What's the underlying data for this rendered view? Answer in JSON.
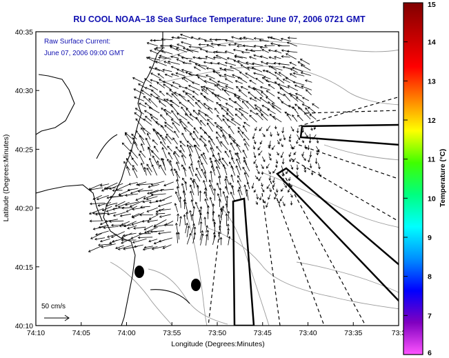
{
  "title": "RU COOL  NOAA–18  Sea Surface Temperature:  June 07, 2006 0721 GMT",
  "annotation": {
    "line1": "Raw Surface Current:",
    "line2": "June 07, 2006 09:00 GMT"
  },
  "scale_label": "50 cm/s",
  "chart_data": {
    "type": "vector-field",
    "title": "RU COOL  NOAA–18  Sea Surface Temperature:  June 07, 2006 0721 GMT",
    "xlabel": "Longitude (Degrees:Minutes)",
    "ylabel": "Latitude (Degrees:Minutes)",
    "x_ticks": [
      "74:10",
      "74:05",
      "74:00",
      "73:55",
      "73:50",
      "73:45",
      "73:40",
      "73:35",
      "73:3"
    ],
    "y_ticks": [
      "40:35",
      "40:30",
      "40:25",
      "40:20",
      "40:15",
      "40:10"
    ],
    "xlim_minutes_west": [
      70,
      30
    ],
    "ylim_minutes_north": [
      10,
      35
    ],
    "colorbar": {
      "label": "Temperature (°C)",
      "ticks": [
        "15",
        "14",
        "13",
        "12",
        "11",
        "10",
        "9",
        "8",
        "7",
        "6"
      ],
      "range": [
        6,
        15
      ],
      "colors": [
        "#ff55ff",
        "#8000c0",
        "#0000ff",
        "#0090ff",
        "#00ffff",
        "#00ff80",
        "#40ff00",
        "#ffff00",
        "#ff8000",
        "#ff0000",
        "#c00000",
        "#800000"
      ]
    },
    "grid": false,
    "legend": "none"
  }
}
